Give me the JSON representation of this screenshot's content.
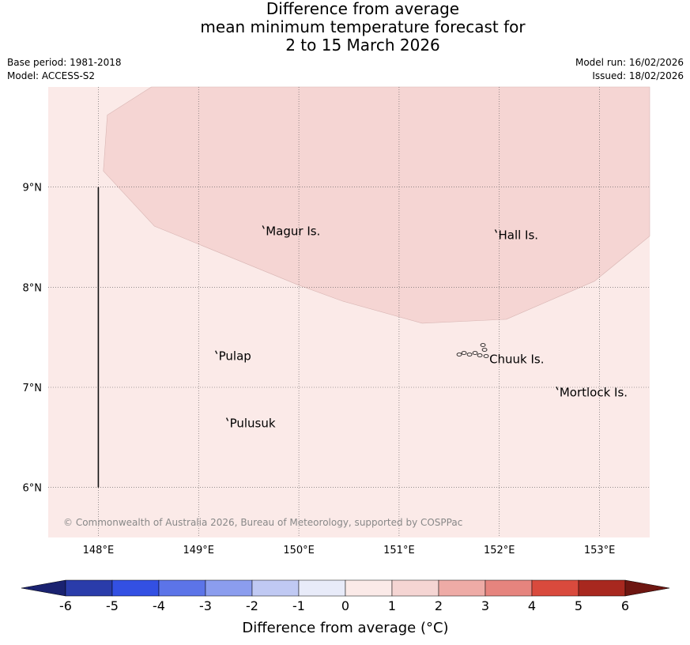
{
  "title": {
    "line1": "Difference from average",
    "line2": "mean minimum temperature forecast for",
    "line3": "2 to 15 March 2026"
  },
  "meta": {
    "base_period": "Base period: 1981-2018",
    "model": "Model: ACCESS-S2",
    "model_run": "Model run: 16/02/2026",
    "issued": "Issued: 18/02/2026"
  },
  "map": {
    "lon_range": [
      147.5,
      153.5
    ],
    "lat_range": [
      5.5,
      10.0
    ],
    "gridlines": true,
    "lon_ticks": [
      {
        "value": 148,
        "label": "148°E"
      },
      {
        "value": 149,
        "label": "149°E"
      },
      {
        "value": 150,
        "label": "150°E"
      },
      {
        "value": 151,
        "label": "151°E"
      },
      {
        "value": 152,
        "label": "152°E"
      },
      {
        "value": 153,
        "label": "153°E"
      }
    ],
    "lat_ticks": [
      {
        "value": 9,
        "label": "9°N"
      },
      {
        "value": 8,
        "label": "8°N"
      },
      {
        "value": 7,
        "label": "7°N"
      },
      {
        "value": 6,
        "label": "6°N"
      }
    ],
    "background_category": "0 to 1",
    "background_color": "#fbeae8",
    "anomaly_region": {
      "category": "1 to 2",
      "color": "#f5d5d3",
      "boundary": [
        {
          "lon": 148.53,
          "lat": 10.0
        },
        {
          "lon": 148.09,
          "lat": 9.72
        },
        {
          "lon": 148.05,
          "lat": 9.16
        },
        {
          "lon": 148.56,
          "lat": 8.61
        },
        {
          "lon": 149.0,
          "lat": 8.43
        },
        {
          "lon": 150.0,
          "lat": 8.02
        },
        {
          "lon": 150.44,
          "lat": 7.86
        },
        {
          "lon": 151.23,
          "lat": 7.64
        },
        {
          "lon": 152.07,
          "lat": 7.68
        },
        {
          "lon": 152.95,
          "lat": 8.06
        },
        {
          "lon": 153.5,
          "lat": 8.51
        },
        {
          "lon": 153.5,
          "lat": 10.0
        }
      ]
    },
    "islands": [
      {
        "name": "Magur Is.",
        "lon": 149.67,
        "lat": 8.56
      },
      {
        "name": "Hall Is.",
        "lon": 151.99,
        "lat": 8.52
      },
      {
        "name": "Pulap",
        "lon": 149.2,
        "lat": 7.31
      },
      {
        "name": "Chuuk Is.",
        "lon": 151.9,
        "lat": 7.28
      },
      {
        "name": "Mortlock Is.",
        "lon": 152.6,
        "lat": 6.95
      },
      {
        "name": "Pulusuk",
        "lon": 149.31,
        "lat": 6.64
      }
    ],
    "boundary_line": {
      "lon": 148.0,
      "lat_from": 6.0,
      "lat_to": 9.0
    },
    "copyright": "© Commonwealth of Australia 2026, Bureau of Meteorology, supported by COSPPac"
  },
  "colorbar": {
    "title": "Difference from average (",
    "title_unit": "°C)",
    "tick_labels": [
      "-6",
      "-5",
      "-4",
      "-3",
      "-2",
      "-1",
      "0",
      "1",
      "2",
      "3",
      "4",
      "5",
      "6"
    ],
    "colors": [
      "#2a3caa",
      "#3350e3",
      "#5c74e8",
      "#8b9dee",
      "#c0c9f3",
      "#e8ebf9",
      "#fbeae8",
      "#f5d5d3",
      "#eeaba6",
      "#e6847e",
      "#d94a3d",
      "#a8281f"
    ],
    "low_extend_color": "#1a2270",
    "high_extend_color": "#6e1611"
  }
}
